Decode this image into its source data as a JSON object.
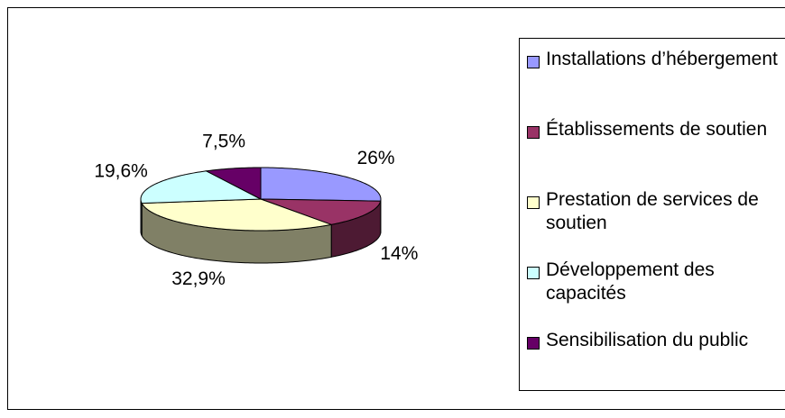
{
  "chart_data": {
    "type": "pie3d",
    "categories": [
      "Installations d’hébergement",
      "Établissements de soutien",
      "Prestation de services de soutien",
      "Développement des capacités",
      "Sensibilisation du public"
    ],
    "values": [
      26,
      14,
      32.9,
      19.6,
      7.5
    ],
    "value_labels": [
      "26%",
      "14%",
      "32,9%",
      "19,6%",
      "7,5%"
    ],
    "colors": [
      "#9999ff",
      "#993366",
      "#ffffcc",
      "#ccffff",
      "#660066"
    ],
    "legend": "right"
  }
}
